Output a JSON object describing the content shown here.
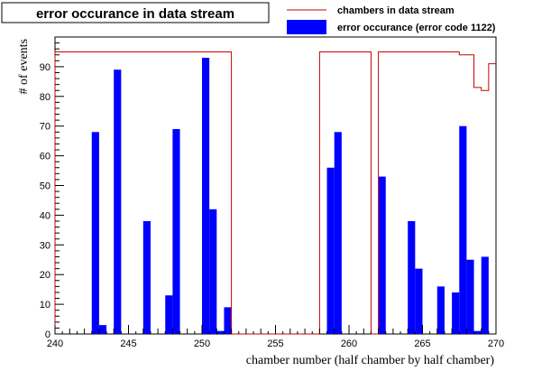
{
  "chart_data": {
    "type": "bar",
    "title": "error occurance in data stream",
    "xlabel": "chamber number (half chamber by half chamber)",
    "ylabel": "# of events",
    "xlim": [
      240,
      270
    ],
    "ylim": [
      0,
      100
    ],
    "x_ticks": [
      240,
      245,
      250,
      255,
      260,
      265,
      270
    ],
    "y_ticks": [
      0,
      10,
      20,
      30,
      40,
      50,
      60,
      70,
      80,
      90
    ],
    "bin_width": 0.5,
    "legend": {
      "position": "top-right",
      "entries": [
        {
          "label": "chambers in data stream",
          "style": "line",
          "color": "#cc0000"
        },
        {
          "label": "error occurance (error code 1122)",
          "style": "fill",
          "color": "#0000ff"
        }
      ]
    },
    "series": [
      {
        "name": "chambers in data stream",
        "style": "step",
        "color": "#cc0000",
        "bins": [
          {
            "x0": 240.0,
            "x1": 252.0,
            "value": 95
          },
          {
            "x0": 252.0,
            "x1": 258.0,
            "value": 0
          },
          {
            "x0": 258.0,
            "x1": 261.5,
            "value": 95
          },
          {
            "x0": 261.5,
            "x1": 262.0,
            "value": 0
          },
          {
            "x0": 262.0,
            "x1": 267.5,
            "value": 95
          },
          {
            "x0": 267.5,
            "x1": 268.5,
            "value": 94
          },
          {
            "x0": 268.5,
            "x1": 269.0,
            "value": 83
          },
          {
            "x0": 269.0,
            "x1": 269.5,
            "value": 82
          },
          {
            "x0": 269.5,
            "x1": 270.0,
            "value": 91
          }
        ]
      },
      {
        "name": "error occurance (error code 1122)",
        "style": "bar",
        "color": "#0000ff",
        "bins": [
          {
            "x0": 242.5,
            "value": 68
          },
          {
            "x0": 243.0,
            "value": 3
          },
          {
            "x0": 244.0,
            "value": 89
          },
          {
            "x0": 246.0,
            "value": 38
          },
          {
            "x0": 247.5,
            "value": 13
          },
          {
            "x0": 248.0,
            "value": 69
          },
          {
            "x0": 250.0,
            "value": 93
          },
          {
            "x0": 250.5,
            "value": 42
          },
          {
            "x0": 251.0,
            "value": 1
          },
          {
            "x0": 251.5,
            "value": 9
          },
          {
            "x0": 258.5,
            "value": 56
          },
          {
            "x0": 259.0,
            "value": 68
          },
          {
            "x0": 262.0,
            "value": 53
          },
          {
            "x0": 264.0,
            "value": 38
          },
          {
            "x0": 264.5,
            "value": 22
          },
          {
            "x0": 266.0,
            "value": 16
          },
          {
            "x0": 267.0,
            "value": 14
          },
          {
            "x0": 267.5,
            "value": 70
          },
          {
            "x0": 268.0,
            "value": 25
          },
          {
            "x0": 268.5,
            "value": 1
          },
          {
            "x0": 269.0,
            "value": 26
          }
        ]
      }
    ]
  }
}
